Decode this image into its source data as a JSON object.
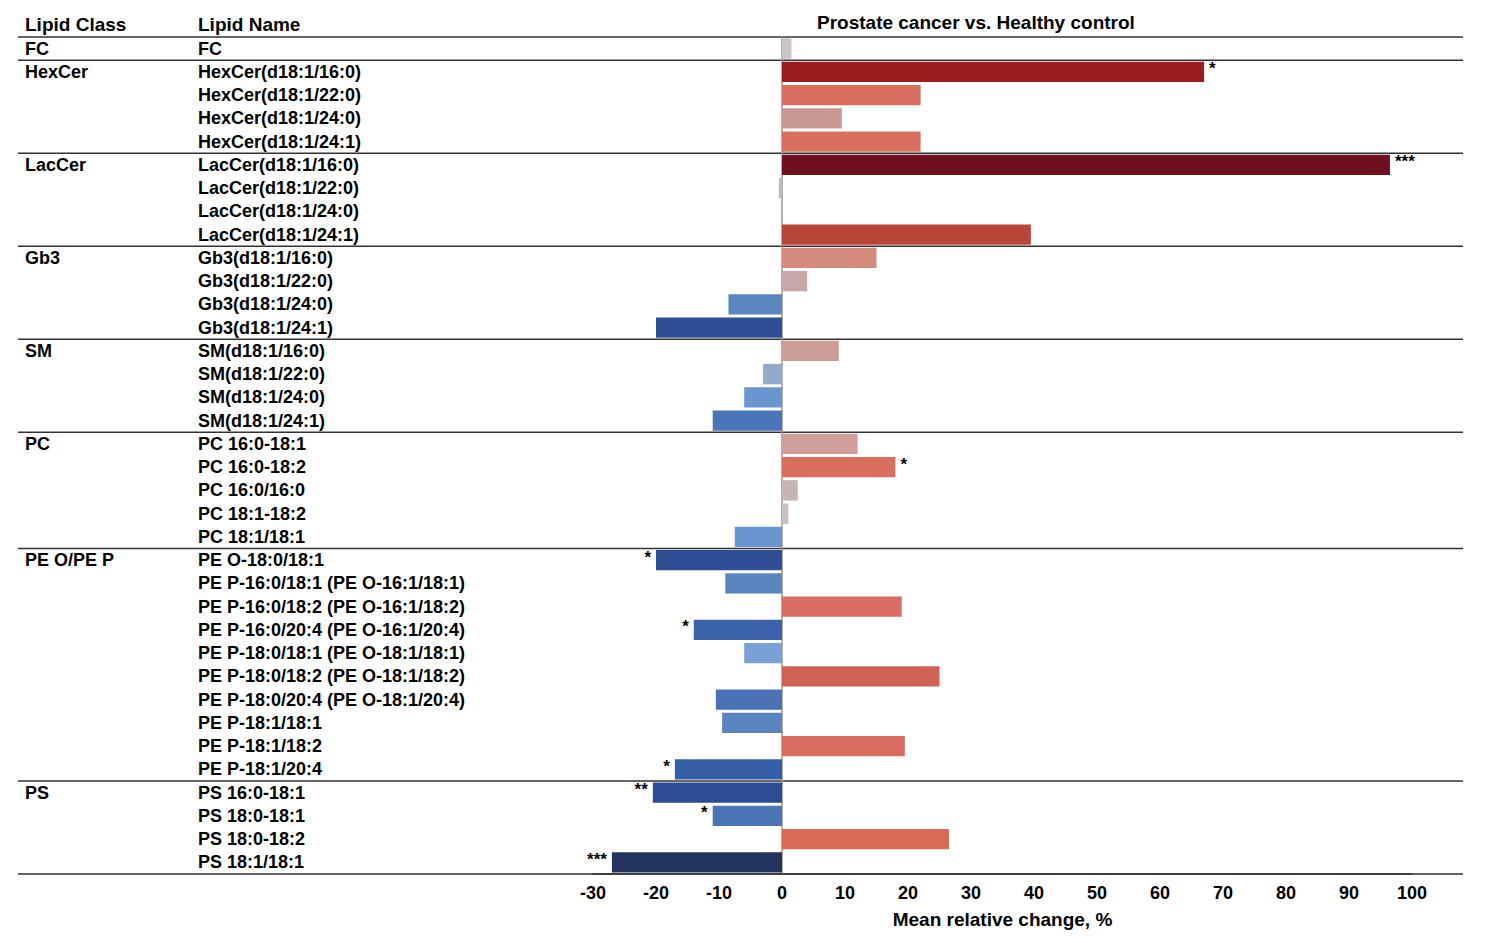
{
  "chart_data": {
    "type": "bar",
    "orientation": "horizontal",
    "title": "Prostate cancer vs. Healthy control",
    "column_headers": [
      "Lipid Class",
      "Lipid Name"
    ],
    "x_label": "Mean relative change, %",
    "categories": [
      "FC",
      "HexCer(d18:1/16:0)",
      "HexCer(d18:1/22:0)",
      "HexCer(d18:1/24:0)",
      "HexCer(d18:1/24:1)",
      "LacCer(d18:1/16:0)",
      "LacCer(d18:1/22:0)",
      "LacCer(d18:1/24:0)",
      "LacCer(d18:1/24:1)",
      "Gb3(d18:1/16:0)",
      "Gb3(d18:1/22:0)",
      "Gb3(d18:1/24:0)",
      "Gb3(d18:1/24:1)",
      "SM(d18:1/16:0)",
      "SM(d18:1/22:0)",
      "SM(d18:1/24:0)",
      "SM(d18:1/24:1)",
      "PC 16:0-18:1",
      "PC 16:0-18:2",
      "PC 16:0/16:0",
      "PC 18:1-18:2",
      "PC 18:1/18:1",
      "PE O-18:0/18:1",
      "PE P-16:0/18:1 (PE O-16:1/18:1)",
      "PE P-16:0/18:2 (PE O-16:1/18:2)",
      "PE P-16:0/20:4 (PE O-16:1/20:4)",
      "PE P-18:0/18:1 (PE O-18:1/18:1)",
      "PE P-18:0/18:2 (PE O-18:1/18:2)",
      "PE P-18:0/20:4 (PE O-18:1/20:4)",
      "PE P-18:1/18:1",
      "PE P-18:1/18:2",
      "PE P-18:1/20:4",
      "PS 16:0-18:1",
      "PS 18:0-18:1",
      "PS 18:0-18:2",
      "PS 18:1/18:1"
    ],
    "class_labels": [
      "FC",
      "HexCer",
      null,
      null,
      null,
      "LacCer",
      null,
      null,
      null,
      "Gb3",
      null,
      null,
      null,
      "SM",
      null,
      null,
      null,
      "PC",
      null,
      null,
      null,
      null,
      "PE O/PE P",
      null,
      null,
      null,
      null,
      null,
      null,
      null,
      null,
      null,
      "PS",
      null,
      null,
      null
    ],
    "values": [
      1.5,
      67,
      22,
      9.5,
      22,
      96.5,
      -0.5,
      0,
      39.5,
      15,
      4,
      -8.5,
      -20,
      9,
      -3,
      -6,
      -11,
      12,
      18,
      2.5,
      1,
      -7.5,
      -20,
      -9,
      19,
      -14,
      -6,
      25,
      -10.5,
      -9.5,
      19.5,
      -17,
      -20.5,
      -11,
      26.5,
      -27
    ],
    "colors": [
      "#c9c3c3",
      "#9b1b1f",
      "#d9705f",
      "#c99a94",
      "#d9705f",
      "#6e1020",
      "#bbbbbb",
      "#cccccc",
      "#b8453a",
      "#d58a7e",
      "#c8a8a6",
      "#5b85c0",
      "#2e4f95",
      "#cc9c96",
      "#93aac8",
      "#6a95cf",
      "#4a75b8",
      "#cfa09a",
      "#da6e5f",
      "#c8b4b2",
      "#c8c0c0",
      "#6a95cf",
      "#2e4f95",
      "#5a84c0",
      "#da6e64",
      "#3b62aa",
      "#7aa0d6",
      "#cf6456",
      "#4a72b5",
      "#5a84c0",
      "#da6e64",
      "#3560a8",
      "#2c4d93",
      "#4a76b8",
      "#d96a58",
      "#23355e"
    ],
    "annotations": [
      {
        "category": "HexCer(d18:1/16:0)",
        "text": "*"
      },
      {
        "category": "LacCer(d18:1/16:0)",
        "text": "***"
      },
      {
        "category": "PC 16:0-18:2",
        "text": "*"
      },
      {
        "category": "PE O-18:0/18:1",
        "text": "*"
      },
      {
        "category": "PE P-16:0/20:4 (PE O-16:1/20:4)",
        "text": "*"
      },
      {
        "category": "PE P-18:1/20:4",
        "text": "*"
      },
      {
        "category": "PS 16:0-18:1",
        "text": "**"
      },
      {
        "category": "PS 18:0-18:1",
        "text": "*"
      },
      {
        "category": "PS 18:1/18:1",
        "text": "***"
      }
    ],
    "xlim": [
      -30,
      100
    ],
    "xticks": [
      -30,
      -20,
      -10,
      0,
      10,
      20,
      30,
      40,
      50,
      60,
      70,
      80,
      90,
      100
    ],
    "grid": false
  }
}
